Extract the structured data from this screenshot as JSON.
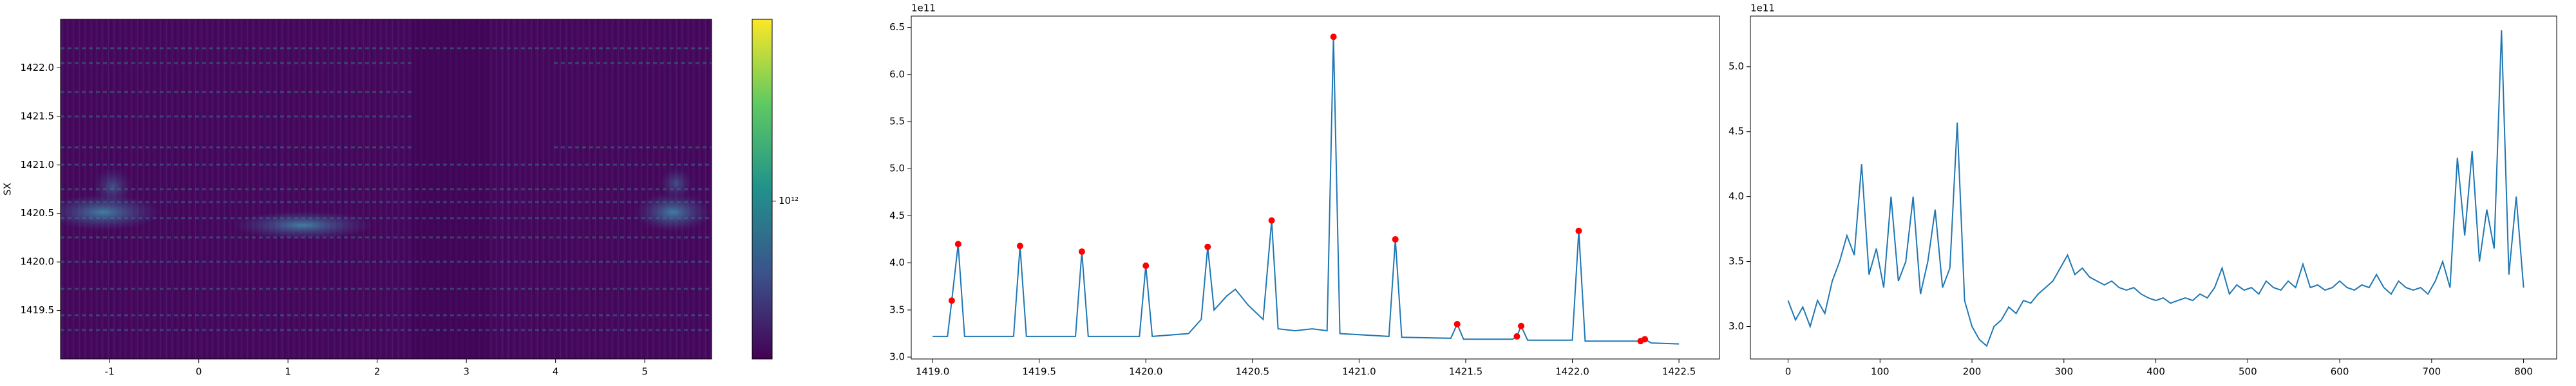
{
  "chart_data": [
    {
      "type": "heatmap",
      "ylabel": "SX",
      "xlim": [
        -1.55,
        5.75
      ],
      "ylim": [
        1419.0,
        1422.5
      ],
      "xticks": [
        -1,
        0,
        1,
        2,
        3,
        4,
        5
      ],
      "yticks": [
        1419.5,
        {
          "value": 1420.0,
          "label": "1420.0"
        },
        1420.5,
        {
          "value": 1421.0,
          "label": "1421.0"
        },
        1421.5,
        {
          "value": 1422.0,
          "label": "1422.0"
        }
      ],
      "colorbar": {
        "scale": "log",
        "colormap": "viridis",
        "clim": [
          300000000000,
          4000000000000
        ],
        "ticks": [
          {
            "value": 1000000000000,
            "label": "10¹²"
          }
        ]
      }
    },
    {
      "type": "line",
      "color": "#1f77b4",
      "offset_text": "1e11",
      "xlim": [
        1418.9,
        1422.69
      ],
      "ylim": [
        2.98,
        6.62
      ],
      "xticks": [
        {
          "value": 1419,
          "label": "1419.0"
        },
        1419.5,
        {
          "value": 1420,
          "label": "1420.0"
        },
        1420.5,
        {
          "value": 1421,
          "label": "1421.0"
        },
        1421.5,
        {
          "value": 1422,
          "label": "1422.0"
        },
        1422.5
      ],
      "yticks": [
        {
          "value": 3,
          "label": "3.0"
        },
        3.5,
        {
          "value": 4,
          "label": "4.0"
        },
        4.5,
        {
          "value": 5,
          "label": "5.0"
        },
        5.5,
        {
          "value": 6,
          "label": "6.0"
        },
        6.5
      ],
      "x": [
        1419.0,
        1419.07,
        1419.09,
        1419.12,
        1419.15,
        1419.38,
        1419.41,
        1419.44,
        1419.67,
        1419.7,
        1419.73,
        1419.97,
        1420.0,
        1420.03,
        1420.2,
        1420.26,
        1420.29,
        1420.32,
        1420.38,
        1420.42,
        1420.48,
        1420.55,
        1420.59,
        1420.62,
        1420.7,
        1420.78,
        1420.85,
        1420.88,
        1420.91,
        1421.14,
        1421.17,
        1421.2,
        1421.43,
        1421.46,
        1421.49,
        1421.72,
        1421.74,
        1421.76,
        1421.79,
        1422.0,
        1422.03,
        1422.06,
        1422.3,
        1422.32,
        1422.34,
        1422.37,
        1422.5
      ],
      "values": [
        3.22,
        3.22,
        3.6,
        4.2,
        3.22,
        3.22,
        4.18,
        3.22,
        3.22,
        4.12,
        3.22,
        3.22,
        3.97,
        3.22,
        3.25,
        3.4,
        4.17,
        3.5,
        3.65,
        3.72,
        3.55,
        3.4,
        4.45,
        3.3,
        3.28,
        3.3,
        3.28,
        6.4,
        3.25,
        3.22,
        4.25,
        3.21,
        3.2,
        3.35,
        3.19,
        3.19,
        3.22,
        3.33,
        3.18,
        3.18,
        4.34,
        3.17,
        3.17,
        3.17,
        3.19,
        3.15,
        3.14
      ],
      "peaks": {
        "color": "red",
        "x": [
          1419.09,
          1419.12,
          1419.41,
          1419.7,
          1420.0,
          1420.29,
          1420.59,
          1420.88,
          1421.17,
          1421.46,
          1421.74,
          1421.76,
          1422.03,
          1422.32,
          1422.34
        ],
        "values": [
          3.6,
          4.2,
          4.18,
          4.12,
          3.97,
          4.17,
          4.45,
          6.4,
          4.25,
          3.35,
          3.22,
          3.33,
          4.34,
          3.17,
          3.19
        ]
      }
    },
    {
      "type": "line",
      "color": "#1f77b4",
      "offset_text": "1e11",
      "xlim": [
        -41,
        836
      ],
      "ylim": [
        2.75,
        5.39
      ],
      "xticks": [
        0,
        100,
        200,
        300,
        400,
        500,
        600,
        700,
        800
      ],
      "yticks": [
        {
          "value": 3,
          "label": "3.0"
        },
        3.5,
        {
          "value": 4,
          "label": "4.0"
        },
        4.5,
        {
          "value": 5,
          "label": "5.0"
        }
      ],
      "x": [
        0,
        8,
        16,
        24,
        32,
        40,
        48,
        56,
        64,
        72,
        80,
        88,
        96,
        104,
        112,
        120,
        128,
        136,
        144,
        152,
        160,
        168,
        176,
        184,
        192,
        200,
        208,
        216,
        224,
        232,
        240,
        248,
        256,
        264,
        272,
        280,
        288,
        296,
        304,
        312,
        320,
        328,
        336,
        344,
        352,
        360,
        368,
        376,
        384,
        392,
        400,
        408,
        416,
        424,
        432,
        440,
        448,
        456,
        464,
        472,
        480,
        488,
        496,
        504,
        512,
        520,
        528,
        536,
        544,
        552,
        560,
        568,
        576,
        584,
        592,
        600,
        608,
        616,
        624,
        632,
        640,
        648,
        656,
        664,
        672,
        680,
        688,
        696,
        704,
        712,
        720,
        728,
        736,
        744,
        752,
        760,
        768,
        776,
        784,
        792,
        800
      ],
      "values": [
        3.2,
        3.05,
        3.15,
        3.0,
        3.2,
        3.1,
        3.35,
        3.5,
        3.7,
        3.55,
        4.25,
        3.4,
        3.6,
        3.3,
        4.0,
        3.35,
        3.5,
        4.0,
        3.25,
        3.5,
        3.9,
        3.3,
        3.45,
        4.57,
        3.2,
        3.0,
        2.9,
        2.85,
        3.0,
        3.05,
        3.15,
        3.1,
        3.2,
        3.18,
        3.25,
        3.3,
        3.35,
        3.45,
        3.55,
        3.4,
        3.45,
        3.38,
        3.35,
        3.32,
        3.35,
        3.3,
        3.28,
        3.3,
        3.25,
        3.22,
        3.2,
        3.22,
        3.18,
        3.2,
        3.22,
        3.2,
        3.25,
        3.22,
        3.3,
        3.45,
        3.25,
        3.32,
        3.28,
        3.3,
        3.25,
        3.35,
        3.3,
        3.28,
        3.35,
        3.3,
        3.48,
        3.3,
        3.32,
        3.28,
        3.3,
        3.35,
        3.3,
        3.28,
        3.32,
        3.3,
        3.4,
        3.3,
        3.25,
        3.35,
        3.3,
        3.28,
        3.3,
        3.25,
        3.35,
        3.5,
        3.3,
        4.3,
        3.7,
        4.35,
        3.5,
        3.9,
        3.6,
        5.28,
        3.4,
        4.0,
        3.3
      ]
    }
  ]
}
